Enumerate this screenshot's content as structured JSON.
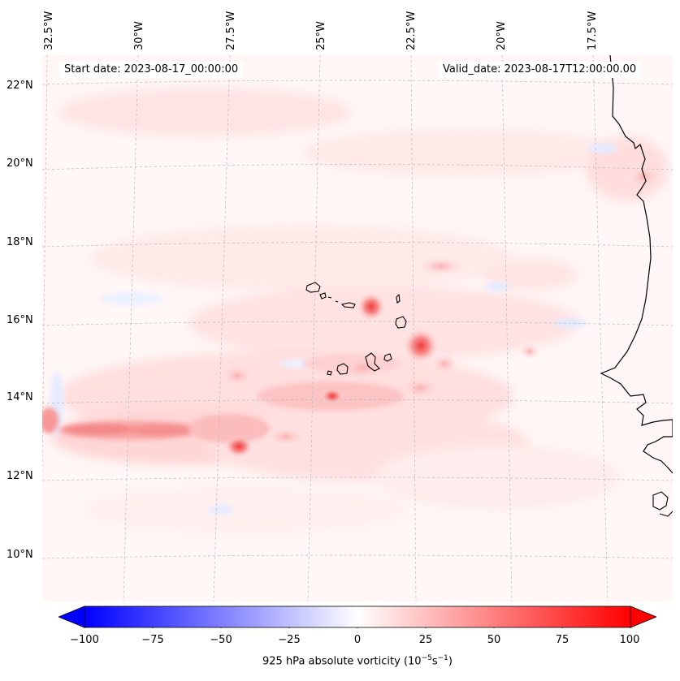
{
  "header": {
    "start_date": "Start date: 2023-08-17_00:00:00",
    "valid_date": "Valid_date: 2023-08-17T12:00:00.00"
  },
  "axes": {
    "longitude_labels": [
      "32.5°W",
      "30°W",
      "27.5°W",
      "25°W",
      "22.5°W",
      "20°W",
      "17.5°W"
    ],
    "latitude_labels": [
      "22°N",
      "20°N",
      "18°N",
      "16°N",
      "14°N",
      "12°N",
      "10°N"
    ]
  },
  "colorbar": {
    "ticks": [
      "−100",
      "−75",
      "−50",
      "−25",
      "0",
      "25",
      "50",
      "75",
      "100"
    ],
    "label_text": "925 hPa absolute vorticity (10",
    "label_exp1": "−5",
    "label_mid": "s",
    "label_exp2": "−1",
    "label_end": ")",
    "colors": {
      "min": "#0000ff",
      "mid": "#ffffff",
      "max": "#ff0000"
    }
  },
  "map": {
    "background_color": "#fff6f6",
    "coastline_color": "#000000",
    "grid": true
  }
}
